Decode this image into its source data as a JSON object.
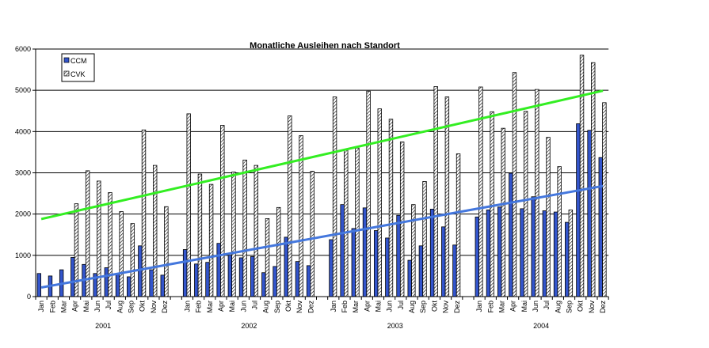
{
  "chart_data": {
    "type": "bar",
    "title": "Monatliche Ausleihen nach Standort",
    "xlabel": "",
    "ylabel": "",
    "ylim": [
      0,
      6000
    ],
    "yticks": [
      "0",
      "1000",
      "2000",
      "3000",
      "4000",
      "5000",
      "6000"
    ],
    "grid": true,
    "legend_position": "top-left",
    "years": [
      "2001",
      "2002",
      "2003",
      "2004"
    ],
    "months": [
      "Jan",
      "Feb",
      "Mar",
      "Apr",
      "Mai",
      "Jun",
      "Jul",
      "Aug",
      "Sep",
      "Okt",
      "Nov",
      "Dez"
    ],
    "series": [
      {
        "name": "CCM",
        "color": "#3355cc",
        "values": [
          560,
          500,
          650,
          950,
          780,
          560,
          700,
          560,
          480,
          1230,
          650,
          520,
          1140,
          790,
          830,
          1290,
          1000,
          940,
          970,
          580,
          730,
          1440,
          850,
          750,
          1380,
          2230,
          1650,
          2150,
          1600,
          1420,
          1970,
          880,
          1230,
          2120,
          1690,
          1250,
          1930,
          2100,
          2170,
          2990,
          2130,
          2420,
          2080,
          2050,
          1800,
          4190,
          4030,
          3370
        ]
      },
      {
        "name": "CVK",
        "color": "#ffffff",
        "values": [
          0,
          0,
          0,
          2250,
          3050,
          2800,
          2520,
          2060,
          1770,
          4040,
          3180,
          2180,
          4430,
          2970,
          2720,
          4150,
          3020,
          3310,
          3180,
          1890,
          2160,
          4380,
          3900,
          3040,
          4840,
          3560,
          3600,
          4980,
          4550,
          4300,
          3750,
          2230,
          2790,
          5090,
          4840,
          3460,
          5080,
          4480,
          4080,
          5430,
          4490,
          5020,
          3860,
          3150,
          2100,
          5850,
          5670,
          4700
        ]
      }
    ],
    "trendlines": [
      {
        "series": "CVK",
        "color": "#33ee22",
        "start": 1880,
        "end": 4990
      },
      {
        "series": "CCM",
        "color": "#4477dd",
        "start": 220,
        "end": 2680
      }
    ]
  }
}
